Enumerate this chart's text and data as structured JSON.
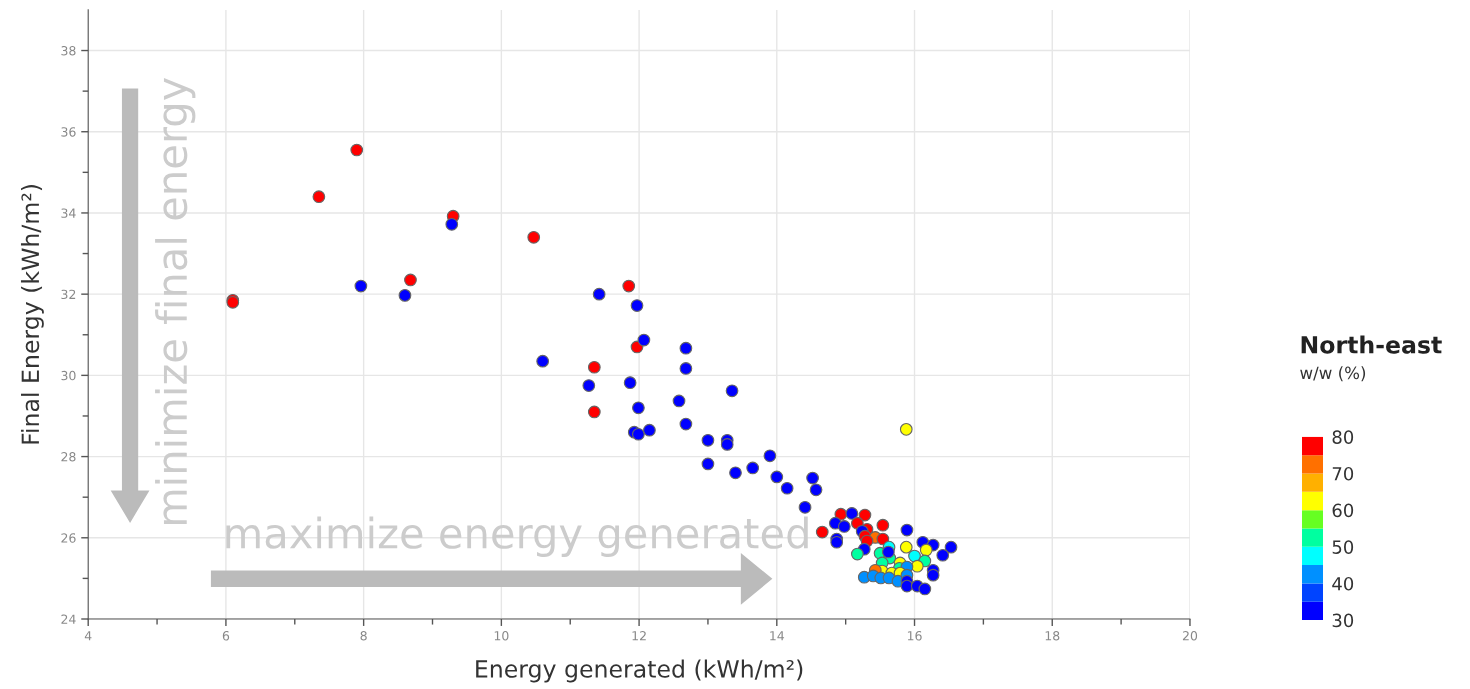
{
  "chart_data": {
    "type": "scatter",
    "xlabel": "Energy generated (kWh/m²)",
    "ylabel": "Final Energy (kWh/m²)",
    "clabel": "North-east",
    "annotations": [
      "minimize final energy",
      "maximize energy generated",
      "w/w (%)"
    ],
    "x": [
      6.1,
      6.1,
      7.35,
      7.9,
      8.68,
      9.3,
      10.47,
      11.35,
      11.35,
      11.85,
      11.97,
      7.96,
      8.6,
      9.28,
      10.6,
      11.42,
      11.97,
      12.07,
      11.27,
      11.87,
      11.99,
      11.93,
      11.99,
      12.15,
      12.58,
      12.68,
      12.68,
      12.68,
      13.35,
      13.0,
      13.28,
      13.28,
      13.0,
      13.4,
      13.65,
      13.9,
      14.0,
      14.15,
      14.52,
      14.57,
      14.41,
      14.93,
      15.09,
      15.28,
      14.85,
      14.98,
      15.17,
      14.66,
      15.31,
      15.54,
      15.24,
      15.28,
      15.43,
      15.54,
      15.31,
      14.87,
      14.87,
      15.89,
      15.27,
      15.17,
      15.88,
      16.12,
      16.27,
      16.17,
      16.53,
      16.41,
      15.5,
      15.63,
      15.64,
      15.62,
      15.53,
      15.79,
      16.0,
      16.15,
      16.04,
      15.78,
      15.89,
      15.53,
      15.43,
      15.67,
      15.79,
      15.27,
      15.4,
      15.51,
      15.63,
      15.76,
      15.89,
      15.89,
      16.27,
      16.27,
      15.89,
      16.04,
      16.15,
      15.88
    ],
    "values": [
      31.85,
      31.8,
      34.4,
      35.55,
      32.35,
      33.92,
      33.4,
      30.2,
      29.1,
      32.2,
      30.7,
      32.2,
      31.97,
      33.72,
      30.35,
      32.0,
      31.72,
      30.87,
      29.75,
      29.82,
      29.2,
      28.6,
      28.55,
      28.65,
      29.37,
      28.8,
      30.67,
      30.17,
      29.62,
      28.4,
      28.4,
      28.3,
      27.82,
      27.6,
      27.72,
      28.02,
      27.5,
      27.22,
      27.47,
      27.18,
      26.75,
      26.58,
      26.6,
      26.56,
      26.36,
      26.28,
      26.36,
      26.14,
      26.21,
      26.31,
      26.16,
      26.04,
      26.01,
      25.97,
      25.92,
      25.97,
      25.89,
      26.19,
      25.72,
      25.6,
      25.77,
      25.89,
      25.82,
      25.7,
      25.77,
      25.57,
      25.62,
      25.77,
      25.5,
      25.65,
      25.38,
      25.38,
      25.55,
      25.43,
      25.3,
      25.25,
      25.28,
      25.18,
      25.2,
      25.13,
      25.13,
      25.03,
      25.06,
      25.01,
      25.01,
      24.93,
      25.08,
      24.93,
      25.2,
      25.08,
      24.81,
      24.81,
      24.74,
      28.67
    ],
    "cvalues": [
      77.5,
      77.5,
      77.5,
      77.5,
      77.5,
      77.5,
      77.5,
      77.5,
      77.5,
      77.5,
      77.5,
      32.5,
      32.5,
      32.5,
      32.5,
      32.5,
      32.5,
      32.5,
      32.5,
      32.5,
      32.5,
      32.5,
      32.5,
      32.5,
      32.5,
      32.5,
      32.5,
      32.5,
      32.5,
      32.5,
      32.5,
      32.5,
      32.5,
      32.5,
      32.5,
      32.5,
      32.5,
      32.5,
      32.5,
      32.5,
      32.5,
      77.5,
      32.5,
      77.5,
      32.5,
      32.5,
      77.5,
      77.5,
      77.5,
      77.5,
      32.5,
      77.5,
      72.5,
      77.5,
      77.5,
      32.5,
      32.5,
      32.5,
      32.5,
      52.5,
      62.5,
      32.5,
      32.5,
      62.5,
      32.5,
      32.5,
      52.5,
      47.5,
      52.5,
      32.5,
      52.5,
      62.5,
      47.5,
      52.5,
      62.5,
      52.5,
      42.5,
      62.5,
      72.5,
      62.5,
      62.5,
      42.5,
      42.5,
      42.5,
      42.5,
      42.5,
      42.5,
      32.5,
      32.5,
      32.5,
      32.5,
      32.5,
      32.5,
      62.5
    ],
    "xlim": [
      4,
      20
    ],
    "ylim": [
      24,
      39
    ],
    "xticks": [
      4,
      {
        "value": 5,
        "label": null
      },
      6,
      {
        "value": 7,
        "label": null
      },
      8,
      {
        "value": 9,
        "label": null
      },
      10,
      {
        "value": 11,
        "label": null
      },
      12,
      {
        "value": 13,
        "label": null
      },
      14,
      {
        "value": 15,
        "label": null
      },
      16,
      {
        "value": 17,
        "label": null
      },
      18,
      {
        "value": 19,
        "label": null
      },
      20
    ],
    "yticks": [
      24,
      {
        "value": 25,
        "label": null
      },
      26,
      {
        "value": 27,
        "label": null
      },
      28,
      {
        "value": 29,
        "label": null
      },
      30,
      {
        "value": 31,
        "label": null
      },
      32,
      {
        "value": 33,
        "label": null
      },
      34,
      {
        "value": 35,
        "label": null
      },
      36,
      {
        "value": 37,
        "label": null
      },
      38
    ],
    "clim": [
      30,
      80
    ],
    "cticks": [
      30,
      40,
      50,
      60,
      70,
      80
    ],
    "grid": true,
    "marker": "circle"
  }
}
